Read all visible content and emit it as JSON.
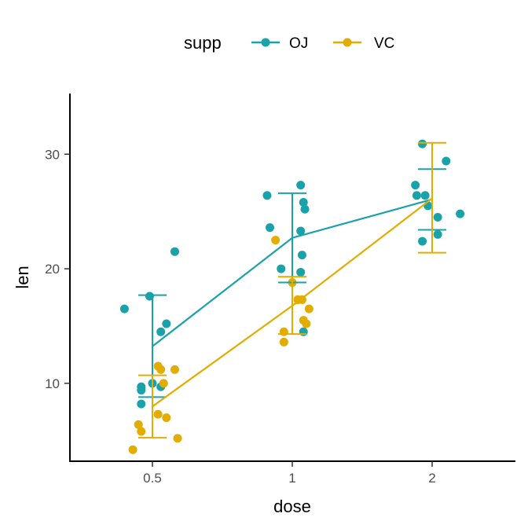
{
  "chart_data": {
    "type": "scatter",
    "xlabel": "dose",
    "ylabel": "len",
    "categories": [
      "0.5",
      "1",
      "2"
    ],
    "ylim": [
      3.2,
      35.3
    ],
    "yticks": [
      "10",
      "20",
      "30"
    ],
    "grid": false,
    "legend": {
      "title": "supp",
      "position": "top"
    },
    "series": [
      {
        "name": "OJ",
        "color": "#1aa2ab",
        "mean": [
          13.23,
          22.7,
          26.06
        ],
        "error_low": [
          8.8,
          18.8,
          23.4
        ],
        "error_high": [
          17.7,
          26.6,
          28.7
        ],
        "points": [
          {
            "x": 0.4,
            "y": 16.5
          },
          {
            "x": 0.46,
            "y": 9.4
          },
          {
            "x": 0.49,
            "y": 17.6
          },
          {
            "x": 0.55,
            "y": 15.2
          },
          {
            "x": 0.58,
            "y": 21.5
          },
          {
            "x": 0.46,
            "y": 9.7
          },
          {
            "x": 0.5,
            "y": 10.0
          },
          {
            "x": 0.53,
            "y": 9.7
          },
          {
            "x": 0.46,
            "y": 8.2
          },
          {
            "x": 0.53,
            "y": 14.5
          },
          {
            "x": 0.91,
            "y": 26.4
          },
          {
            "x": 0.92,
            "y": 23.6
          },
          {
            "x": 0.96,
            "y": 20.0
          },
          {
            "x": 1.06,
            "y": 27.3
          },
          {
            "x": 1.08,
            "y": 25.8
          },
          {
            "x": 1.09,
            "y": 25.2
          },
          {
            "x": 1.06,
            "y": 23.3
          },
          {
            "x": 1.07,
            "y": 21.2
          },
          {
            "x": 1.06,
            "y": 19.7
          },
          {
            "x": 1.08,
            "y": 14.5
          },
          {
            "x": 1.88,
            "y": 27.3
          },
          {
            "x": 1.89,
            "y": 26.4
          },
          {
            "x": 1.93,
            "y": 30.9
          },
          {
            "x": 1.93,
            "y": 22.4
          },
          {
            "x": 1.97,
            "y": 25.5
          },
          {
            "x": 2.04,
            "y": 24.5
          },
          {
            "x": 2.04,
            "y": 23.0
          },
          {
            "x": 2.1,
            "y": 29.4
          },
          {
            "x": 2.2,
            "y": 24.8
          },
          {
            "x": 1.95,
            "y": 26.4
          }
        ]
      },
      {
        "name": "VC",
        "color": "#e2ac00",
        "mean": [
          7.98,
          16.77,
          26.14
        ],
        "error_low": [
          5.25,
          14.3,
          21.4
        ],
        "error_high": [
          10.7,
          19.3,
          31.0
        ],
        "points": [
          {
            "x": 0.43,
            "y": 4.2
          },
          {
            "x": 0.45,
            "y": 6.4
          },
          {
            "x": 0.46,
            "y": 5.8
          },
          {
            "x": 0.52,
            "y": 7.3
          },
          {
            "x": 0.52,
            "y": 11.5
          },
          {
            "x": 0.53,
            "y": 11.2
          },
          {
            "x": 0.54,
            "y": 10.0
          },
          {
            "x": 0.55,
            "y": 7.0
          },
          {
            "x": 0.58,
            "y": 11.2
          },
          {
            "x": 0.59,
            "y": 5.2
          },
          {
            "x": 0.94,
            "y": 22.5
          },
          {
            "x": 0.97,
            "y": 14.5
          },
          {
            "x": 0.97,
            "y": 13.6
          },
          {
            "x": 1.0,
            "y": 18.8
          },
          {
            "x": 1.04,
            "y": 17.3
          },
          {
            "x": 1.07,
            "y": 17.3
          },
          {
            "x": 1.08,
            "y": 15.5
          },
          {
            "x": 1.1,
            "y": 15.2
          },
          {
            "x": 1.12,
            "y": 16.5
          },
          {
            "x": 1.04,
            "y": 17.3
          }
        ]
      }
    ]
  }
}
